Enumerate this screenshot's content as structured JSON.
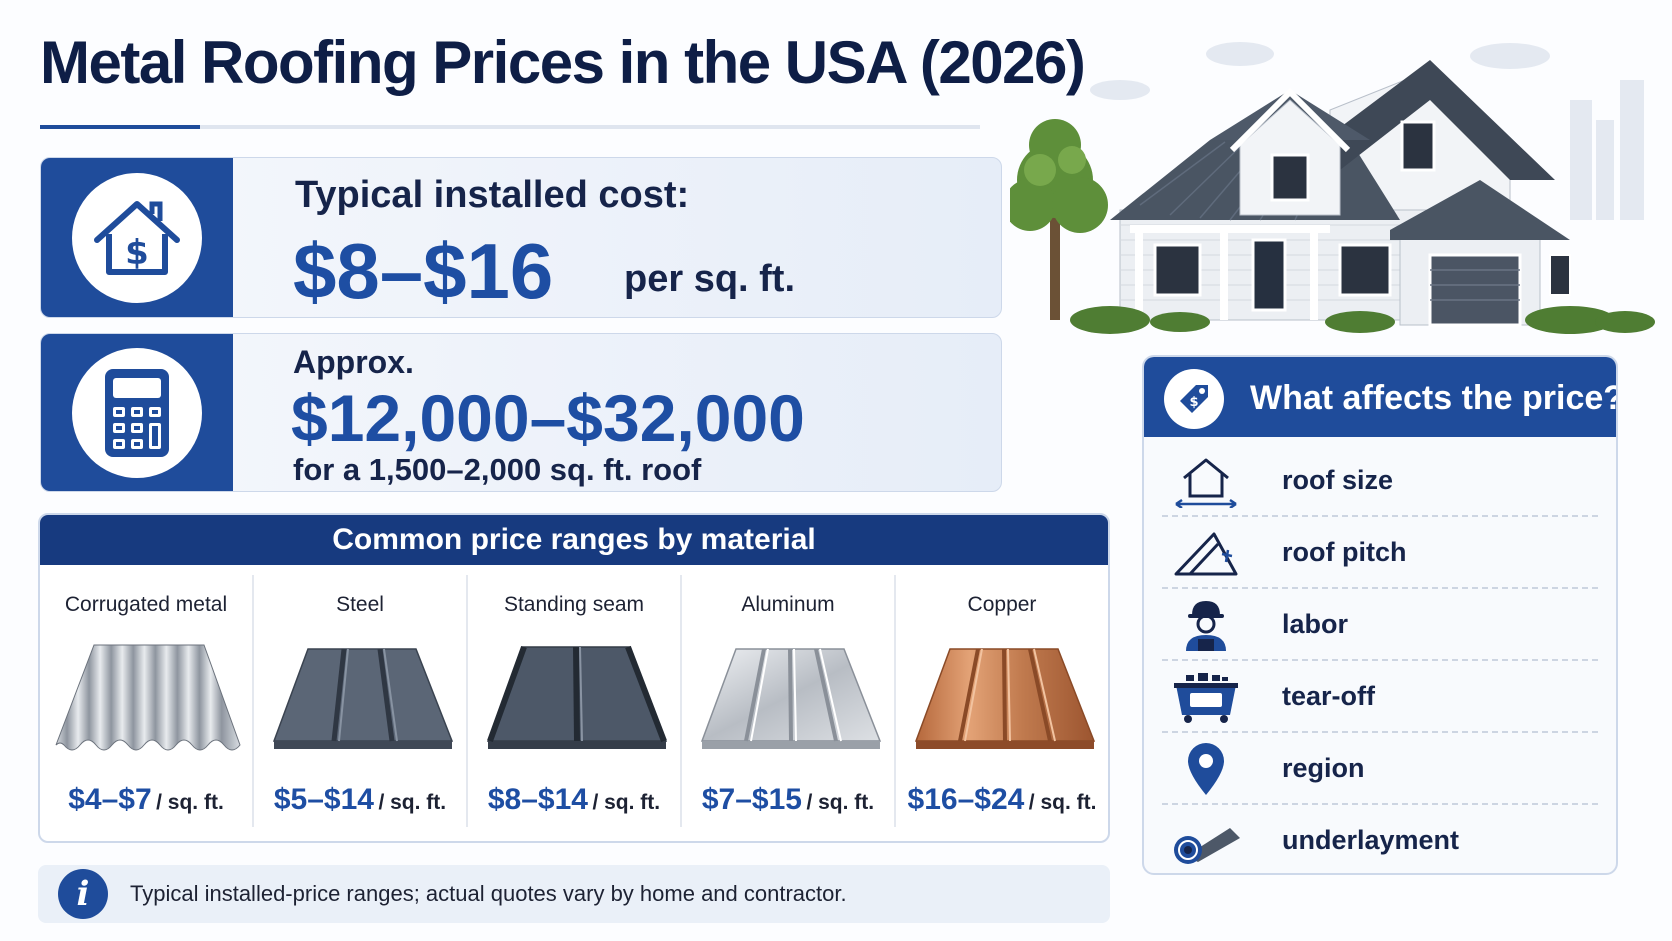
{
  "title": "Metal Roofing Prices in the USA (2026)",
  "cost_per_sqft": {
    "label": "Typical installed cost:",
    "price": "$8–$16",
    "unit": "per sq. ft.",
    "icon": "house-dollar-icon"
  },
  "total_cost": {
    "label": "Approx.",
    "price": "$12,000–$32,000",
    "note": "for a 1,500–2,000 sq. ft. roof",
    "icon": "calculator-icon"
  },
  "materials": {
    "header": "Common price ranges by material",
    "items": [
      {
        "name": "Corrugated metal",
        "price": "$4–$7",
        "unit": "/ sq. ft.",
        "color": "#b9bec6"
      },
      {
        "name": "Steel",
        "price": "$5–$14",
        "unit": "/ sq. ft.",
        "color": "#5b6676"
      },
      {
        "name": "Standing seam",
        "price": "$8–$14",
        "unit": "/ sq. ft.",
        "color": "#4d5868"
      },
      {
        "name": "Aluminum",
        "price": "$7–$15",
        "unit": "/ sq. ft.",
        "color": "#c9cdd3"
      },
      {
        "name": "Copper",
        "price": "$16–$24",
        "unit": "/ sq. ft.",
        "color": "#c07a4e"
      }
    ]
  },
  "note": {
    "icon": "info-icon",
    "info_glyph": "i",
    "text": "Typical installed-price ranges; actual quotes vary by home and contractor."
  },
  "factors": {
    "header": "What affects the price?",
    "header_icon": "price-tag-icon",
    "items": [
      {
        "label": "roof size",
        "icon": "roof-size-icon"
      },
      {
        "label": "roof pitch",
        "icon": "roof-pitch-icon"
      },
      {
        "label": "labor",
        "icon": "worker-icon"
      },
      {
        "label": "tear-off",
        "icon": "dumpster-icon"
      },
      {
        "label": "region",
        "icon": "location-pin-icon"
      },
      {
        "label": "underlayment",
        "icon": "underlayment-roll-icon"
      }
    ]
  },
  "colors": {
    "brand_blue": "#1f4c9b",
    "header_navy": "#173a7f",
    "price_blue": "#1e4ea3",
    "title_navy": "#0e1e46"
  }
}
